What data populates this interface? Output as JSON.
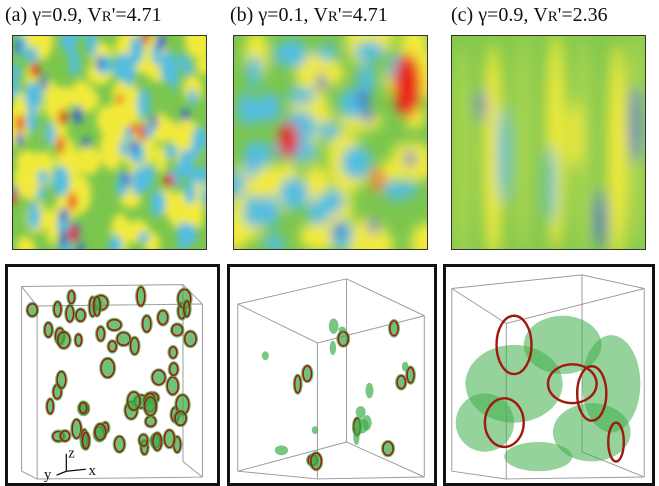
{
  "panels": [
    {
      "label": "(a)",
      "gamma": "γ=0.9,",
      "vr_name": "V",
      "vr_sub": "R",
      "vr_val": "'=4.71"
    },
    {
      "label": "(b)",
      "gamma": "γ=0.1,",
      "vr_name": "V",
      "vr_sub": "R",
      "vr_val": "'=4.71"
    },
    {
      "label": "(c)",
      "gamma": "γ=0.9,",
      "vr_name": "V",
      "vr_sub": "R",
      "vr_val": "'=2.36"
    }
  ],
  "axes": {
    "x": "x",
    "y": "y",
    "z": "z"
  },
  "colors": {
    "low": "#2f5fd0",
    "midlow": "#52bde0",
    "mid": "#6cc04a",
    "midhigh": "#f2ea3a",
    "high": "#e8271c",
    "iso_outer": "#3fae4a",
    "iso_inner": "#a01a10"
  }
}
